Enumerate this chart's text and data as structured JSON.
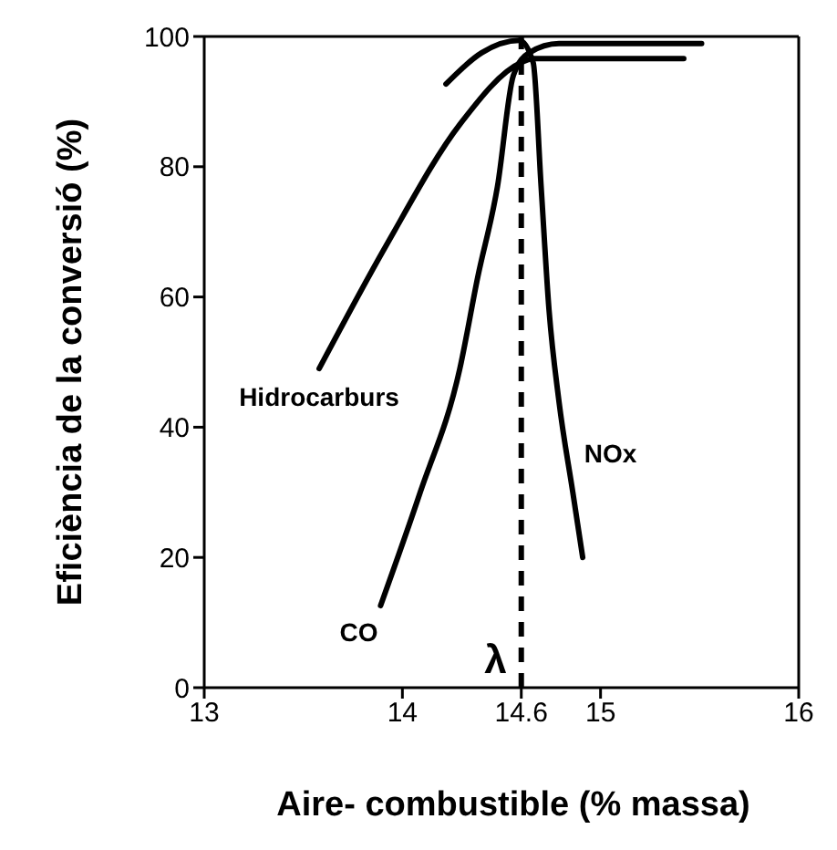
{
  "chart_data": {
    "type": "line",
    "xlabel": "Aire- combustible (% massa)",
    "ylabel": "Eficiència de la conversió (%)",
    "xlim": [
      13,
      16
    ],
    "xticks": [
      13,
      14,
      14.6,
      15,
      16
    ],
    "ylim": [
      0,
      100
    ],
    "yticks": [
      0,
      20,
      40,
      60,
      80,
      100
    ],
    "marker": "none",
    "line_style": "solid",
    "series": [
      {
        "name": "Hidrocarburs",
        "color": "#000000",
        "x": [
          13.58,
          13.92,
          14.29,
          14.6,
          14.66,
          15.42
        ],
        "values": [
          49,
          68,
          86.5,
          96,
          96.6,
          96.6
        ]
      },
      {
        "name": "CO",
        "color": "#000000",
        "x": [
          13.89,
          14.09,
          14.29,
          14.38,
          14.48,
          14.56,
          14.64,
          14.79,
          15.51
        ],
        "values": [
          12.6,
          30,
          49,
          63,
          77,
          94,
          97.5,
          98.9,
          98.9
        ]
      },
      {
        "name": "NOx",
        "color": "#000000",
        "x": [
          14.22,
          14.4,
          14.59,
          14.66,
          14.7,
          14.74,
          14.79,
          14.86,
          14.91
        ],
        "values": [
          92.7,
          97.5,
          99.4,
          96,
          77,
          58,
          44,
          30,
          20
        ]
      }
    ],
    "ref_lines": [
      {
        "axis": "x",
        "value": 14.6,
        "label": "λ",
        "color": "#000000",
        "line_style": "dashed"
      }
    ]
  }
}
